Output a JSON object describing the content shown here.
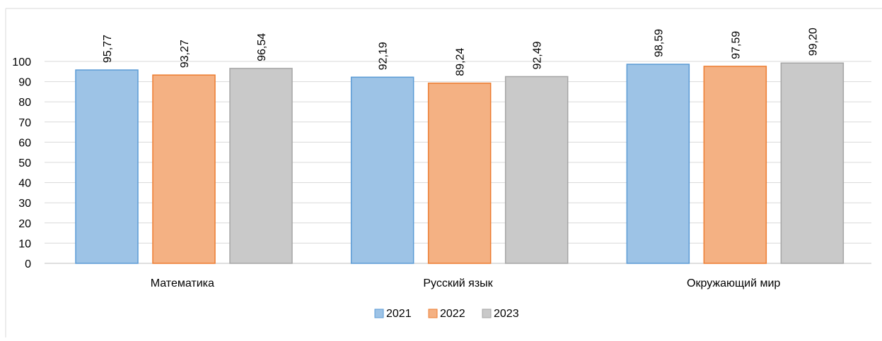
{
  "chart_data": {
    "type": "bar",
    "categories": [
      "Математика",
      "Русский язык",
      "Окружающий мир"
    ],
    "series": [
      {
        "name": "2021",
        "values": [
          95.77,
          92.19,
          98.59
        ],
        "labels": [
          "95,77",
          "92,19",
          "98,59"
        ],
        "color": "#9dc3e6",
        "stroke": "#5b9bd5"
      },
      {
        "name": "2022",
        "values": [
          93.27,
          89.24,
          97.59
        ],
        "labels": [
          "93,27",
          "89,24",
          "97,59"
        ],
        "color": "#f4b183",
        "stroke": "#ed7d31"
      },
      {
        "name": "2023",
        "values": [
          96.54,
          92.49,
          99.2
        ],
        "labels": [
          "96,54",
          "92,49",
          "99,20"
        ],
        "color": "#c9c9c9",
        "stroke": "#a5a5a5"
      }
    ],
    "y_ticks": [
      "0",
      "10",
      "20",
      "30",
      "40",
      "50",
      "60",
      "70",
      "80",
      "90",
      "100"
    ],
    "ylim": [
      0,
      100
    ],
    "grid": true,
    "legend_position": "bottom",
    "title": "",
    "xlabel": "",
    "ylabel": ""
  }
}
